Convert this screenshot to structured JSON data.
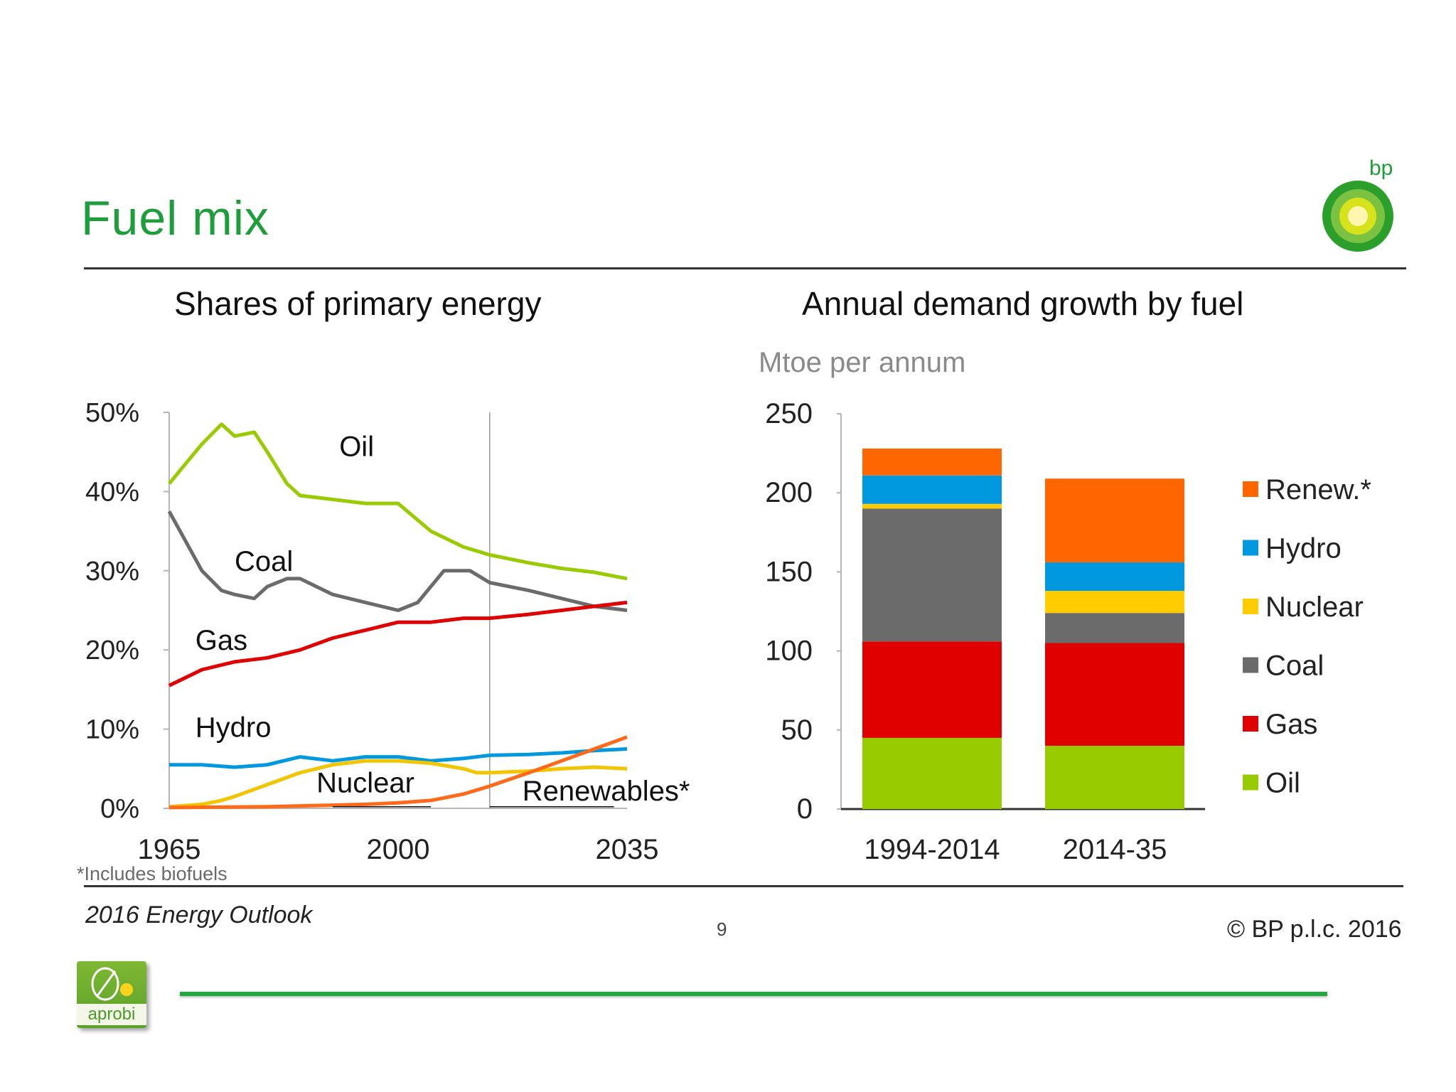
{
  "slide": {
    "title": "Fuel mix",
    "footnote": "*Includes biofuels",
    "publication": "2016 Energy Outlook",
    "page_number": "9",
    "copyright": "© BP p.l.c. 2016",
    "bp_logo_text": "bp",
    "aprobi_logo_text": "aprobi"
  },
  "colors": {
    "title_green": "#1e9e3a",
    "oil": "#99cc00",
    "coal": "#6b6b6b",
    "gas": "#e00000",
    "hydro": "#0099e0",
    "nuclear": "#ffcc00",
    "renewables": "#ff6600",
    "line_nuclear": "#f2c500",
    "line_renewables": "#ff6a1a"
  },
  "chart_data": [
    {
      "type": "line",
      "title": "Shares of primary energy",
      "x_ticks": [
        "1965",
        "2000",
        "2035"
      ],
      "y_ticks": [
        "0%",
        "10%",
        "20%",
        "30%",
        "40%",
        "50%"
      ],
      "xlim": [
        1965,
        2035
      ],
      "ylim": [
        0,
        50
      ],
      "projection_start": 2014,
      "footnote": "*Includes biofuels",
      "series": [
        {
          "name": "Oil",
          "label": "Oil",
          "color": "#99cc00",
          "x": [
            1965,
            1968,
            1970,
            1973,
            1975,
            1978,
            1980,
            1983,
            1985,
            1990,
            1995,
            2000,
            2005,
            2010,
            2014,
            2020,
            2025,
            2030,
            2035
          ],
          "values": [
            41,
            44,
            46,
            48.5,
            47,
            47.5,
            45,
            41,
            39.5,
            39,
            38.5,
            38.5,
            35,
            33,
            32,
            31,
            30.3,
            29.8,
            29
          ]
        },
        {
          "name": "Coal",
          "label": "Coal",
          "color": "#6b6b6b",
          "x": [
            1965,
            1968,
            1970,
            1973,
            1975,
            1978,
            1980,
            1983,
            1985,
            1990,
            1995,
            2000,
            2003,
            2007,
            2011,
            2014,
            2020,
            2025,
            2030,
            2035
          ],
          "values": [
            37.5,
            33,
            30,
            27.5,
            27,
            26.5,
            28,
            29,
            29,
            27,
            26,
            25,
            26,
            30,
            30,
            28.5,
            27.5,
            26.5,
            25.5,
            25
          ]
        },
        {
          "name": "Gas",
          "label": "Gas",
          "color": "#e00000",
          "x": [
            1965,
            1970,
            1975,
            1980,
            1985,
            1990,
            1995,
            2000,
            2005,
            2010,
            2014,
            2020,
            2025,
            2030,
            2035
          ],
          "values": [
            15.5,
            17.5,
            18.5,
            19,
            20,
            21.5,
            22.5,
            23.5,
            23.5,
            24,
            24,
            24.5,
            25,
            25.5,
            26
          ]
        },
        {
          "name": "Hydro",
          "label": "Hydro",
          "color": "#0099e0",
          "x": [
            1965,
            1970,
            1975,
            1980,
            1985,
            1990,
            1995,
            2000,
            2005,
            2010,
            2014,
            2020,
            2025,
            2030,
            2035
          ],
          "values": [
            5.5,
            5.5,
            5.2,
            5.5,
            6.5,
            6,
            6.5,
            6.5,
            6,
            6.3,
            6.7,
            6.8,
            7,
            7.3,
            7.5
          ]
        },
        {
          "name": "Nuclear",
          "label": "Nuclear",
          "color": "#f2c500",
          "x": [
            1965,
            1970,
            1973,
            1975,
            1980,
            1985,
            1990,
            1995,
            2000,
            2005,
            2010,
            2012,
            2014,
            2020,
            2025,
            2030,
            2035
          ],
          "values": [
            0.2,
            0.5,
            1,
            1.5,
            3,
            4.5,
            5.5,
            6,
            6,
            5.7,
            5,
            4.5,
            4.5,
            4.7,
            5,
            5.2,
            5
          ]
        },
        {
          "name": "Renewables*",
          "label": "Renewables*",
          "color": "#ff6a1a",
          "x": [
            1965,
            1980,
            1990,
            1995,
            2000,
            2005,
            2010,
            2014,
            2020,
            2025,
            2030,
            2035
          ],
          "values": [
            0.1,
            0.2,
            0.4,
            0.5,
            0.7,
            1,
            1.8,
            2.8,
            4.5,
            6,
            7.5,
            9
          ]
        }
      ]
    },
    {
      "type": "bar",
      "stacked": true,
      "title": "Annual demand growth by fuel",
      "unit_label": "Mtoe per annum",
      "categories": [
        "1994-2014",
        "2014-35"
      ],
      "y_ticks": [
        "0",
        "50",
        "100",
        "150",
        "200",
        "250"
      ],
      "ylim": [
        0,
        250
      ],
      "legend_position": "right",
      "series": [
        {
          "name": "Oil",
          "legend": "Oil",
          "color": "#99cc00",
          "values": [
            45,
            40
          ]
        },
        {
          "name": "Gas",
          "legend": "Gas",
          "color": "#e00000",
          "values": [
            61,
            65
          ]
        },
        {
          "name": "Coal",
          "legend": "Coal",
          "color": "#6b6b6b",
          "values": [
            84,
            19
          ]
        },
        {
          "name": "Nuclear",
          "legend": "Nuclear",
          "color": "#ffcc00",
          "values": [
            3,
            14
          ]
        },
        {
          "name": "Hydro",
          "legend": "Hydro",
          "color": "#0099e0",
          "values": [
            18,
            18
          ]
        },
        {
          "name": "Renew.*",
          "legend": "Renew.*",
          "color": "#ff6600",
          "values": [
            17,
            53
          ]
        }
      ]
    }
  ]
}
